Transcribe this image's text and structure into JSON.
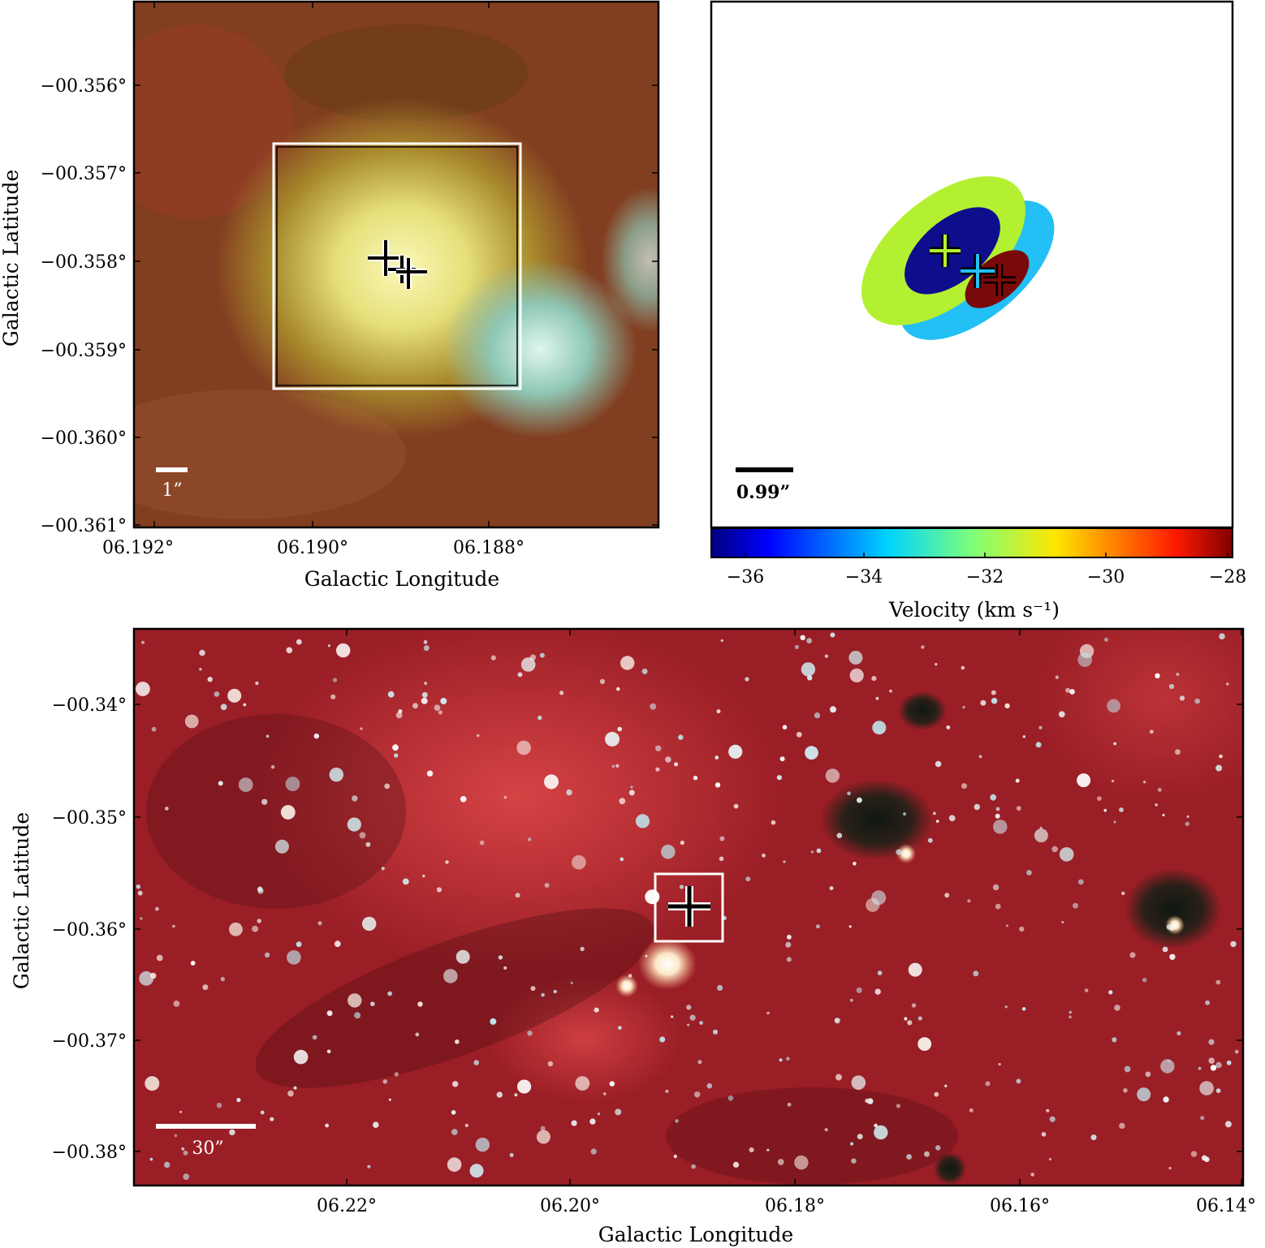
{
  "panel_a": {
    "x_ticks": [
      "06.192°",
      "06.190°",
      "06.188°"
    ],
    "y_ticks": [
      "−00.356°",
      "−00.357°",
      "−00.358°",
      "−00.359°",
      "−00.360°",
      "−00.361°"
    ],
    "xlabel": "Galactic Longitude",
    "ylabel": "Galactic Latitude",
    "scalebar_label": "1”",
    "image_colors": {
      "background": "#8a3a22",
      "core": "#f3f0a0",
      "knot": "#cfeee4"
    }
  },
  "panel_b": {
    "scalebar_label": "0.99”",
    "colorbar": {
      "ticks": [
        "−36",
        "−34",
        "−32",
        "−30",
        "−28"
      ],
      "label": "Velocity (km s⁻¹)",
      "range": [
        -36.5,
        -28
      ]
    },
    "components": [
      {
        "color": "#b4f032",
        "velocity": -31.7
      },
      {
        "color": "#0e0e8c",
        "velocity": -36.0
      },
      {
        "color": "#22c0f5",
        "velocity": -33.5
      },
      {
        "color": "#7a0a0a",
        "velocity": -28.3
      }
    ]
  },
  "panel_c": {
    "x_ticks": [
      "06.22°",
      "06.20°",
      "06.18°",
      "06.16°",
      "06.14°"
    ],
    "y_ticks": [
      "−00.34°",
      "−00.35°",
      "−00.36°",
      "−00.37°",
      "−00.38°"
    ],
    "xlabel": "Galactic Longitude",
    "ylabel": "Galactic Latitude",
    "scalebar_label": "30”",
    "image_colors": {
      "background": "#9a1e26",
      "nebula": "#e04b4b",
      "star": "#e8f4f4"
    }
  }
}
